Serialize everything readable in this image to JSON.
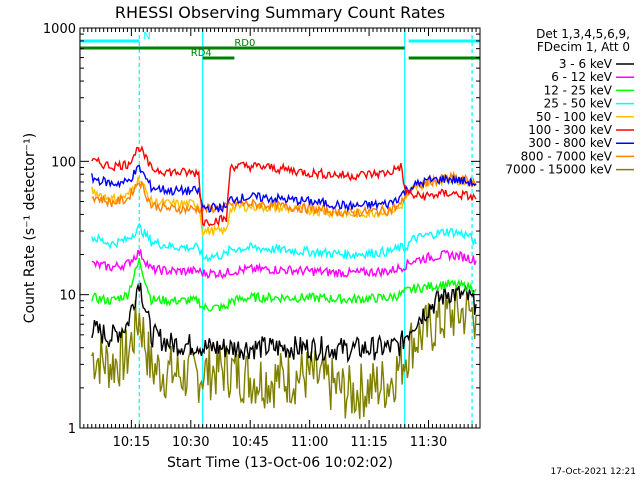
{
  "chart_data": {
    "type": "line",
    "title": "RHESSI Observing Summary Count Rates",
    "xlabel": "Start Time (13-Oct-06 10:02:02)",
    "ylabel": "Count Rate (s⁻¹ detector⁻¹)",
    "y_scale": "log",
    "ylim": [
      1,
      1000
    ],
    "xlim": [
      "10:02:02",
      "11:43:00"
    ],
    "x_tick_labels": [
      "10:15",
      "10:30",
      "10:45",
      "11:00",
      "11:15",
      "11:30"
    ],
    "y_tick_labels": [
      "1",
      "10",
      "100",
      "1000"
    ],
    "legend_header": [
      "Det 1,3,4,5,6,9,",
      "FDecim 1, Att 0"
    ],
    "legend_placement": "right",
    "timestamp": "17-Oct-2021 12:21",
    "annotations": [
      {
        "label": "N",
        "color": "#00ffff",
        "segments": [
          [
            "10:02",
            "10:17"
          ],
          [
            "11:25",
            "11:43"
          ]
        ]
      },
      {
        "label": "RD0",
        "color": "#008000",
        "segments": [
          [
            "10:02",
            "11:24"
          ]
        ]
      },
      {
        "label": "RD4",
        "color": "#008000",
        "segments": [
          [
            "10:33",
            "10:41"
          ],
          [
            "11:25",
            "11:43"
          ]
        ]
      }
    ],
    "vlines": [
      {
        "time": "10:02",
        "color": "#00ffff",
        "style": "solid"
      },
      {
        "time": "10:17",
        "color": "#00ffff",
        "style": "dashed"
      },
      {
        "time": "10:33",
        "color": "#00ffff",
        "style": "solid"
      },
      {
        "time": "11:24",
        "color": "#00ffff",
        "style": "solid"
      },
      {
        "time": "11:41",
        "color": "#00ffff",
        "style": "dashed"
      }
    ],
    "x": [
      "10:05",
      "10:10",
      "10:14",
      "10:17",
      "10:20",
      "10:25",
      "10:30",
      "10:32",
      "10:33",
      "10:39",
      "10:40",
      "10:45",
      "10:50",
      "11:00",
      "11:10",
      "11:20",
      "11:23",
      "11:24",
      "11:26",
      "11:30",
      "11:35",
      "11:40",
      "11:42"
    ],
    "series": [
      {
        "name": "3 - 6 keV",
        "color": "#000000",
        "values": [
          5.5,
          4.8,
          6,
          13,
          5,
          4.3,
          4.2,
          4.3,
          4.0,
          4.0,
          4.0,
          4.0,
          4.0,
          4.0,
          3.9,
          4.0,
          4.2,
          4.8,
          6,
          8,
          10.5,
          9.5,
          8.5
        ]
      },
      {
        "name": "6 - 12 keV",
        "color": "#ff00ff",
        "values": [
          17,
          16,
          17,
          21,
          15.5,
          15,
          15,
          15,
          14.5,
          14.5,
          15,
          15.5,
          15.5,
          15,
          14.5,
          15,
          16,
          16.5,
          18,
          19,
          20,
          19,
          18
        ]
      },
      {
        "name": "12 - 25 keV",
        "color": "#00ff00",
        "values": [
          9.5,
          9,
          10,
          18,
          9.2,
          9,
          9,
          9,
          8,
          8,
          9,
          9.5,
          9.5,
          9.5,
          9.2,
          9.5,
          10,
          10.5,
          11,
          11.5,
          12,
          11.5,
          11
        ]
      },
      {
        "name": "25 - 50 keV",
        "color": "#00ffff",
        "values": [
          27,
          24,
          26,
          32,
          25,
          23,
          22.5,
          22.5,
          19,
          20,
          22,
          22.5,
          22,
          21,
          20,
          21,
          22.5,
          22,
          26,
          28,
          30,
          28,
          24
        ]
      },
      {
        "name": "50 - 100 keV",
        "color": "#ffc000",
        "values": [
          60,
          52,
          55,
          75,
          50,
          48,
          48,
          48,
          30,
          30,
          45,
          46,
          45,
          43,
          40,
          42,
          45,
          52,
          62,
          70,
          74,
          70,
          68
        ]
      },
      {
        "name": "100 - 300 keV",
        "color": "#ff0000",
        "values": [
          100,
          92,
          95,
          128,
          88,
          83,
          82,
          82,
          35,
          37,
          92,
          92,
          90,
          82,
          78,
          82,
          92,
          62,
          55,
          55,
          58,
          55,
          52
        ]
      },
      {
        "name": "300 - 800 keV",
        "color": "#0000ff",
        "values": [
          75,
          68,
          70,
          90,
          64,
          60,
          60,
          60,
          45,
          45,
          52,
          54,
          53,
          50,
          46,
          48,
          55,
          60,
          65,
          72,
          74,
          70,
          68
        ]
      },
      {
        "name": "800 - 7000 keV",
        "color": "#ff8000",
        "values": [
          55,
          49,
          52,
          72,
          47,
          44,
          44,
          44,
          44,
          45,
          48,
          48,
          47,
          44,
          41,
          43,
          47,
          55,
          63,
          70,
          76,
          72,
          66
        ]
      },
      {
        "name": "7000 - 15000 keV",
        "color": "#808000",
        "values": [
          3.5,
          3.0,
          3.5,
          7,
          2.8,
          2.6,
          2.5,
          2.5,
          2.6,
          2.8,
          2.7,
          2.4,
          2.3,
          2.5,
          1.8,
          2.2,
          3.0,
          3.5,
          4.5,
          5.5,
          7,
          7.5,
          7
        ]
      }
    ]
  }
}
